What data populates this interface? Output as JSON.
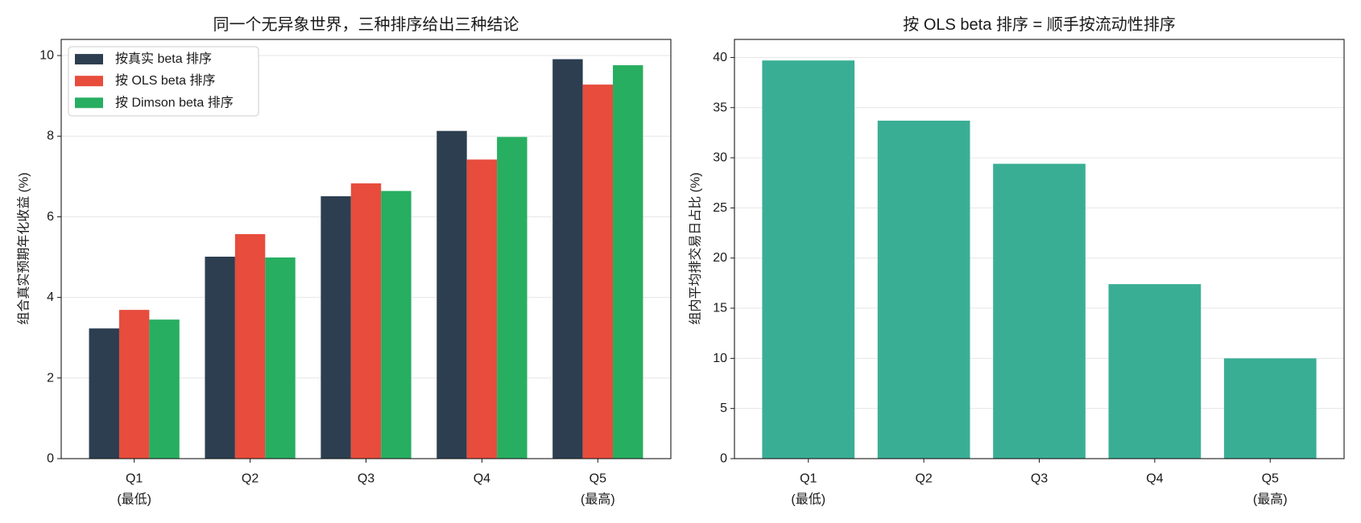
{
  "chart_data": [
    {
      "type": "bar",
      "title": "同一个无异象世界，三种排序给出三种结论",
      "ylabel": "组合真实预期年化收益 (%)",
      "categories": [
        "Q1",
        "Q2",
        "Q3",
        "Q4",
        "Q5"
      ],
      "category_notes": [
        "(最低)",
        "",
        "",
        "",
        "(最高)"
      ],
      "series": [
        {
          "name": "按真实 beta 排序",
          "color": "#2c3e50",
          "values": [
            3.23,
            5.01,
            6.51,
            8.13,
            9.91
          ]
        },
        {
          "name": "按 OLS beta 排序",
          "color": "#e74c3c",
          "values": [
            3.69,
            5.57,
            6.83,
            7.42,
            9.28
          ]
        },
        {
          "name": "按 Dimson beta 排序",
          "color": "#27ae60",
          "values": [
            3.45,
            4.99,
            6.64,
            7.98,
            9.76
          ]
        }
      ],
      "ylim": [
        0,
        10.4
      ],
      "yticks": [
        0,
        2,
        4,
        6,
        8,
        10
      ],
      "grid": "y",
      "legend": "top-left"
    },
    {
      "type": "bar",
      "title": "按 OLS beta 排序 = 顺手按流动性排序",
      "ylabel": "组内平均排交易日占比 (%)",
      "categories": [
        "Q1",
        "Q2",
        "Q3",
        "Q4",
        "Q5"
      ],
      "category_notes": [
        "(最低)",
        "",
        "",
        "",
        "(最高)"
      ],
      "values": [
        39.7,
        33.7,
        29.4,
        17.4,
        10.0
      ],
      "color": "#3aae95",
      "ylim": [
        0,
        41.8
      ],
      "yticks": [
        0,
        5,
        10,
        15,
        20,
        25,
        30,
        35,
        40
      ],
      "grid": "y"
    }
  ]
}
